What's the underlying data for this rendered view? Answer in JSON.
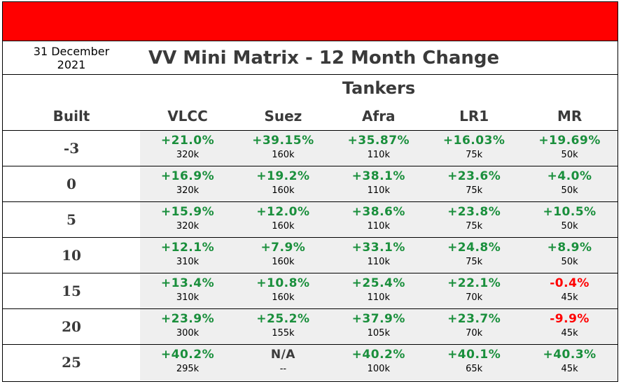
{
  "header": {
    "date": "31 December 2021",
    "title": "VV Mini Matrix - 12 Month Change",
    "accent_color": "#ff0000"
  },
  "table": {
    "group_header": "Tankers",
    "built_header": "Built",
    "columns": [
      "VLCC",
      "Suez",
      "Afra",
      "LR1",
      "MR"
    ],
    "rows": [
      {
        "built": "-3",
        "cells": [
          {
            "change": "+21.0%",
            "size": "320k",
            "status": "pos"
          },
          {
            "change": "+39.15%",
            "size": "160k",
            "status": "pos"
          },
          {
            "change": "+35.87%",
            "size": "110k",
            "status": "pos"
          },
          {
            "change": "+16.03%",
            "size": "75k",
            "status": "pos"
          },
          {
            "change": "+19.69%",
            "size": "50k",
            "status": "pos"
          }
        ]
      },
      {
        "built": "0",
        "cells": [
          {
            "change": "+16.9%",
            "size": "320k",
            "status": "pos"
          },
          {
            "change": "+19.2%",
            "size": "160k",
            "status": "pos"
          },
          {
            "change": "+38.1%",
            "size": "110k",
            "status": "pos"
          },
          {
            "change": "+23.6%",
            "size": "75k",
            "status": "pos"
          },
          {
            "change": "+4.0%",
            "size": "50k",
            "status": "pos"
          }
        ]
      },
      {
        "built": "5",
        "cells": [
          {
            "change": "+15.9%",
            "size": "320k",
            "status": "pos"
          },
          {
            "change": "+12.0%",
            "size": "160k",
            "status": "pos"
          },
          {
            "change": "+38.6%",
            "size": "110k",
            "status": "pos"
          },
          {
            "change": "+23.8%",
            "size": "75k",
            "status": "pos"
          },
          {
            "change": "+10.5%",
            "size": "50k",
            "status": "pos"
          }
        ]
      },
      {
        "built": "10",
        "cells": [
          {
            "change": "+12.1%",
            "size": "310k",
            "status": "pos"
          },
          {
            "change": "+7.9%",
            "size": "160k",
            "status": "pos"
          },
          {
            "change": "+33.1%",
            "size": "110k",
            "status": "pos"
          },
          {
            "change": "+24.8%",
            "size": "75k",
            "status": "pos"
          },
          {
            "change": "+8.9%",
            "size": "50k",
            "status": "pos"
          }
        ]
      },
      {
        "built": "15",
        "cells": [
          {
            "change": "+13.4%",
            "size": "310k",
            "status": "pos"
          },
          {
            "change": "+10.8%",
            "size": "160k",
            "status": "pos"
          },
          {
            "change": "+25.4%",
            "size": "110k",
            "status": "pos"
          },
          {
            "change": "+22.1%",
            "size": "70k",
            "status": "pos"
          },
          {
            "change": "-0.4%",
            "size": "45k",
            "status": "neg"
          }
        ]
      },
      {
        "built": "20",
        "cells": [
          {
            "change": "+23.9%",
            "size": "300k",
            "status": "pos"
          },
          {
            "change": "+25.2%",
            "size": "155k",
            "status": "pos"
          },
          {
            "change": "+37.9%",
            "size": "105k",
            "status": "pos"
          },
          {
            "change": "+23.7%",
            "size": "70k",
            "status": "pos"
          },
          {
            "change": "-9.9%",
            "size": "45k",
            "status": "neg"
          }
        ]
      },
      {
        "built": "25",
        "cells": [
          {
            "change": "+40.2%",
            "size": "295k",
            "status": "pos"
          },
          {
            "change": "N/A",
            "size": "--",
            "status": "na"
          },
          {
            "change": "+40.2%",
            "size": "100k",
            "status": "pos"
          },
          {
            "change": "+40.1%",
            "size": "65k",
            "status": "pos"
          },
          {
            "change": "+40.3%",
            "size": "45k",
            "status": "pos"
          }
        ]
      }
    ]
  },
  "colors": {
    "positive": "#1a8f3c",
    "negative": "#ff0000",
    "cell_background": "#efefef"
  }
}
